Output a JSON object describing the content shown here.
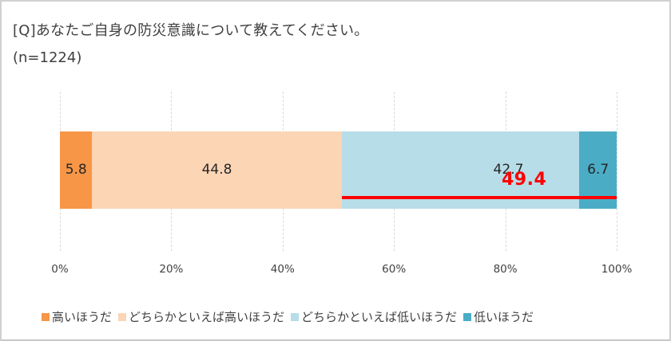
{
  "title": "[Q]あなたご自身の防災意識について教えてください。",
  "subtitle": "(n=1224)",
  "colors": {
    "high": "#f79646",
    "somewhat_high": "#fcd5b5",
    "somewhat_low": "#b7dde8",
    "low": "#4bacc6",
    "highlight": "#ff0000"
  },
  "annotation": {
    "label": "49.4",
    "description": "Sum of どちらかといえば低いほうだ + 低いほうだ",
    "from_pct": 50.6,
    "to_pct": 100
  },
  "axis": {
    "ticks": [
      "0%",
      "20%",
      "40%",
      "60%",
      "80%",
      "100%"
    ]
  },
  "legend": [
    {
      "label": "高いほうだ",
      "color": "#f79646"
    },
    {
      "label": "どちらかといえば高いほうだ",
      "color": "#fcd5b5"
    },
    {
      "label": "どちらかといえば低いほうだ",
      "color": "#b7dde8"
    },
    {
      "label": "低いほうだ",
      "color": "#4bacc6"
    }
  ],
  "chart_data": {
    "type": "bar",
    "orientation": "horizontal",
    "stacked": "100%",
    "title": "[Q]あなたご自身の防災意識について教えてください。",
    "subtitle": "(n=1224)",
    "categories": [
      ""
    ],
    "series": [
      {
        "name": "高いほうだ",
        "values": [
          5.8
        ],
        "color": "#f79646"
      },
      {
        "name": "どちらかといえば高いほうだ",
        "values": [
          44.8
        ],
        "color": "#fcd5b5"
      },
      {
        "name": "どちらかといえば低いほうだ",
        "values": [
          42.7
        ],
        "color": "#b7dde8"
      },
      {
        "name": "低いほうだ",
        "values": [
          6.7
        ],
        "color": "#4bacc6"
      }
    ],
    "annotations": [
      {
        "text": "49.4",
        "type": "bracket-line",
        "color": "#ff0000",
        "spans": [
          "どちらかといえば低いほうだ",
          "低いほうだ"
        ]
      }
    ],
    "xlabel": "",
    "ylabel": "",
    "xlim": [
      0,
      100
    ],
    "xticks": [
      "0%",
      "20%",
      "40%",
      "60%",
      "80%",
      "100%"
    ],
    "grid": "vertical dashed",
    "legend_position": "bottom"
  }
}
